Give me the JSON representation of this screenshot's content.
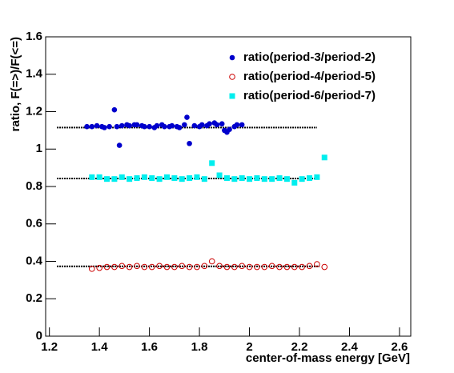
{
  "chart_data": {
    "type": "scatter",
    "xlabel": "center-of-mass energy [GeV]",
    "ylabel": "ratio, F(=>)/F(<=)",
    "xlim": [
      1.185,
      2.645
    ],
    "ylim": [
      0,
      1.6
    ],
    "xticks": [
      1.2,
      1.4,
      1.6,
      1.8,
      2,
      2.2,
      2.4,
      2.6
    ],
    "yticks": [
      0,
      0.2,
      0.4,
      0.6,
      0.8,
      1,
      1.2,
      1.4,
      1.6
    ],
    "legend": "upper right",
    "series": [
      {
        "name": "ratio(period-3/period-2)",
        "color": "#0000cc",
        "marker": "circle",
        "x": [
          1.35,
          1.37,
          1.39,
          1.41,
          1.42,
          1.44,
          1.46,
          1.47,
          1.48,
          1.49,
          1.51,
          1.52,
          1.54,
          1.55,
          1.57,
          1.58,
          1.6,
          1.62,
          1.63,
          1.65,
          1.66,
          1.68,
          1.69,
          1.71,
          1.72,
          1.74,
          1.75,
          1.76,
          1.78,
          1.8,
          1.81,
          1.83,
          1.84,
          1.86,
          1.87,
          1.89,
          1.9,
          1.91,
          1.92,
          1.94,
          1.95,
          1.97
        ],
        "values": [
          1.12,
          1.12,
          1.125,
          1.12,
          1.115,
          1.12,
          1.21,
          1.12,
          1.02,
          1.125,
          1.13,
          1.125,
          1.13,
          1.13,
          1.125,
          1.12,
          1.12,
          1.115,
          1.125,
          1.13,
          1.12,
          1.12,
          1.125,
          1.12,
          1.115,
          1.13,
          1.17,
          1.03,
          1.125,
          1.12,
          1.13,
          1.125,
          1.135,
          1.14,
          1.13,
          1.135,
          1.1,
          1.09,
          1.105,
          1.12,
          1.13,
          1.13
        ]
      },
      {
        "name": "ratio(period-4/period-5)",
        "color": "#cc0000",
        "marker": "open-circle",
        "x": [
          1.37,
          1.4,
          1.43,
          1.46,
          1.49,
          1.52,
          1.55,
          1.58,
          1.61,
          1.64,
          1.67,
          1.7,
          1.73,
          1.76,
          1.79,
          1.82,
          1.85,
          1.88,
          1.91,
          1.94,
          1.97,
          2.0,
          2.03,
          2.06,
          2.09,
          2.12,
          2.15,
          2.18,
          2.21,
          2.24,
          2.27,
          2.3
        ],
        "values": [
          0.36,
          0.365,
          0.37,
          0.37,
          0.375,
          0.37,
          0.375,
          0.37,
          0.37,
          0.375,
          0.37,
          0.37,
          0.375,
          0.37,
          0.37,
          0.375,
          0.4,
          0.375,
          0.37,
          0.37,
          0.375,
          0.37,
          0.37,
          0.37,
          0.375,
          0.37,
          0.37,
          0.37,
          0.37,
          0.375,
          0.385,
          0.37
        ]
      },
      {
        "name": "ratio(period-6/period-7)",
        "color": "#00eeee",
        "marker": "square",
        "x": [
          1.37,
          1.4,
          1.43,
          1.46,
          1.49,
          1.52,
          1.55,
          1.58,
          1.61,
          1.64,
          1.67,
          1.7,
          1.73,
          1.76,
          1.79,
          1.82,
          1.85,
          1.88,
          1.91,
          1.94,
          1.97,
          2.0,
          2.03,
          2.06,
          2.09,
          2.12,
          2.15,
          2.18,
          2.21,
          2.24,
          2.27,
          2.3
        ],
        "values": [
          0.85,
          0.85,
          0.84,
          0.84,
          0.85,
          0.84,
          0.845,
          0.85,
          0.845,
          0.84,
          0.85,
          0.845,
          0.84,
          0.845,
          0.85,
          0.84,
          0.925,
          0.86,
          0.845,
          0.84,
          0.845,
          0.84,
          0.845,
          0.84,
          0.84,
          0.845,
          0.84,
          0.82,
          0.84,
          0.845,
          0.85,
          0.955
        ]
      }
    ],
    "fit_lines": [
      {
        "color": "#000000",
        "x": [
          1.23,
          2.27
        ],
        "values": [
          1.115,
          1.115
        ]
      },
      {
        "color": "#000000",
        "x": [
          1.23,
          2.28
        ],
        "values": [
          0.843,
          0.843
        ]
      },
      {
        "color": "#000000",
        "x": [
          1.23,
          2.28
        ],
        "values": [
          0.373,
          0.373
        ]
      }
    ]
  }
}
